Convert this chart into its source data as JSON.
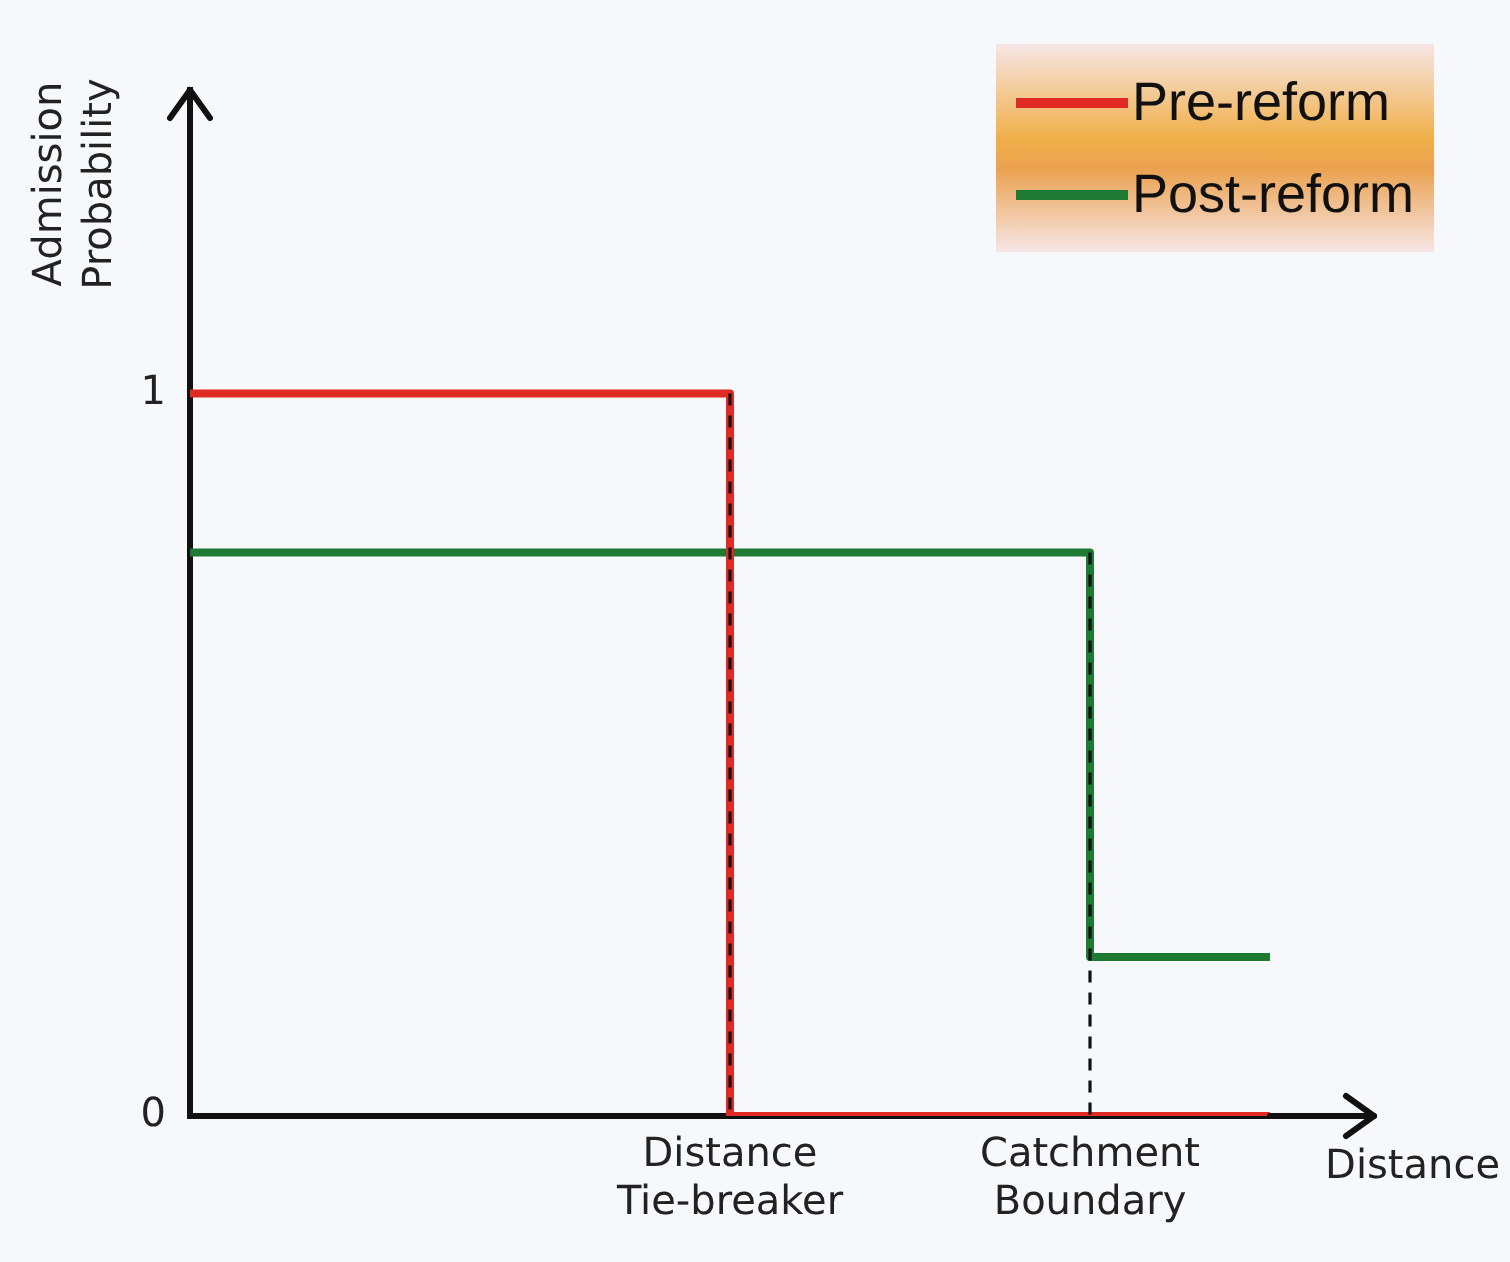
{
  "chart_data": {
    "type": "step",
    "xlabel": "Distance",
    "ylabel": "Admission Probability",
    "categories": [
      null,
      null,
      null,
      "Distance Tie-breaker",
      null,
      "Catchment Boundary",
      null
    ],
    "ylim": [
      0,
      1.42
    ],
    "yticks": [
      0,
      1
    ],
    "series": [
      {
        "name": "Pre-reform",
        "color": "#e02a24",
        "values": [
          1,
          1,
          1,
          0,
          0,
          0,
          0
        ]
      },
      {
        "name": "Post-reform",
        "color": "#1e7a32",
        "values": [
          0.78,
          0.78,
          0.78,
          0.78,
          0.78,
          0.22,
          0.22
        ]
      }
    ],
    "ref_lines": [
      {
        "axis": "x",
        "value": "Distance Tie-breaker",
        "color": "#111111",
        "line_style": "dashed"
      },
      {
        "axis": "x",
        "value": "Catchment Boundary",
        "color": "#111111",
        "line_style": "dashed"
      }
    ],
    "grid": false,
    "legend": "top right",
    "marker": "none",
    "line_style": "solid"
  }
}
